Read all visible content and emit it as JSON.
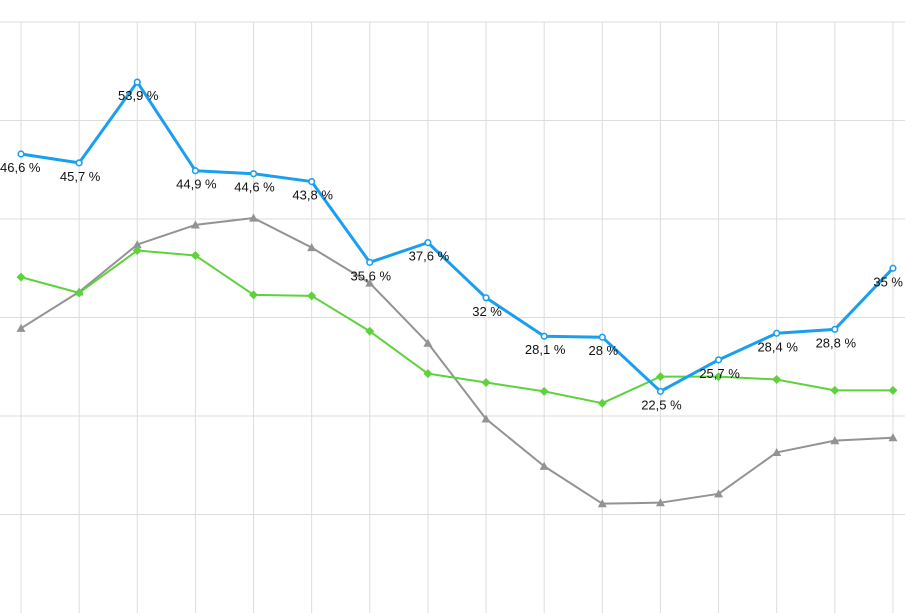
{
  "chart_data": {
    "type": "line",
    "categories": [
      "",
      "",
      "",
      "",
      "",
      "",
      "",
      "",
      "",
      "",
      "",
      "",
      "",
      "",
      "",
      ""
    ],
    "ylim": [
      0,
      60
    ],
    "grid": true,
    "legend": "none",
    "series": [
      {
        "color": "#1a9ff0",
        "marker": "circle",
        "values": [
          46.6,
          45.7,
          53.9,
          44.9,
          44.6,
          43.8,
          35.6,
          37.6,
          32,
          28.1,
          28,
          22.5,
          25.7,
          28.4,
          28.8,
          35
        ],
        "labels": [
          "46,6 %",
          "45,7 %",
          "53,9 %",
          "44,9 %",
          "44,6 %",
          "43,8 %",
          "35,6 %",
          "37,6 %",
          "32 %",
          "28,1 %",
          "28 %",
          "22,5 %",
          "25,7 %",
          "28,4 %",
          "28,8 %",
          "35 %"
        ]
      },
      {
        "color": "#5ed23c",
        "marker": "diamond",
        "values": [
          34.1,
          32.5,
          36.8,
          36.3,
          32.3,
          32.2,
          28.6,
          24.3,
          23.4,
          22.5,
          21.3,
          24.0,
          24.0,
          23.7,
          22.6,
          22.6
        ]
      },
      {
        "color": "#939393",
        "marker": "triangle",
        "values": [
          28.9,
          32.6,
          37.4,
          39.4,
          40.1,
          37.1,
          33.5,
          27.4,
          19.7,
          14.9,
          11.1,
          11.2,
          12.1,
          16.3,
          17.5,
          17.8
        ]
      }
    ]
  }
}
